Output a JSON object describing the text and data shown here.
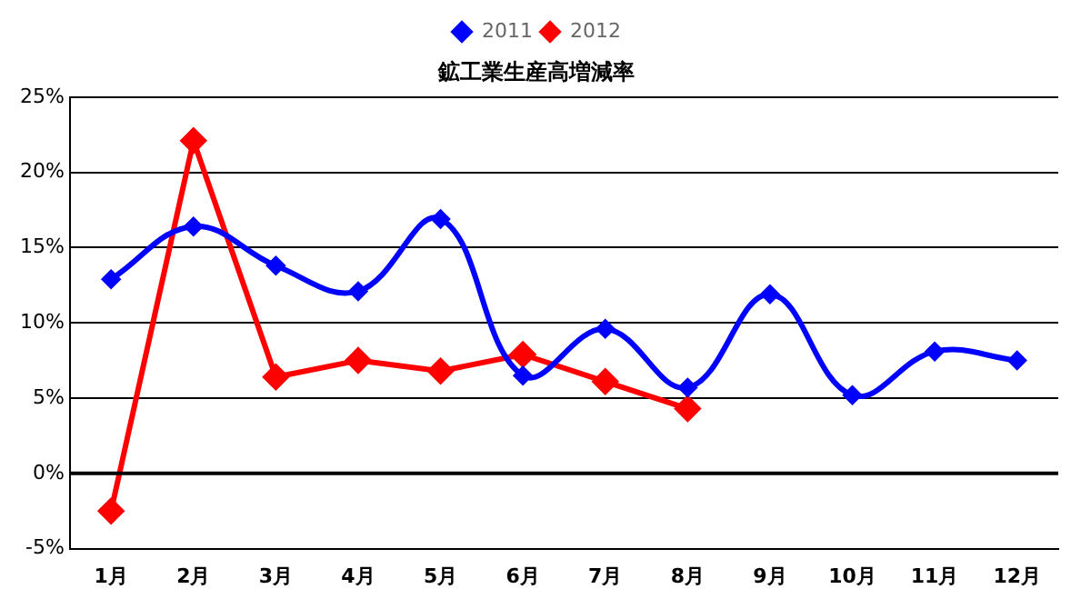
{
  "chart_data": {
    "type": "line",
    "title": "鉱工業生産高増減率",
    "categories": [
      "1月",
      "2月",
      "3月",
      "4月",
      "5月",
      "6月",
      "7月",
      "8月",
      "9月",
      "10月",
      "11月",
      "12月"
    ],
    "series": [
      {
        "name": "2011",
        "color": "#0000ff",
        "values": [
          12.9,
          16.4,
          13.8,
          12.1,
          16.9,
          6.5,
          9.6,
          5.7,
          11.9,
          5.2,
          8.1,
          7.5
        ]
      },
      {
        "name": "2012",
        "color": "#ff0000",
        "values": [
          -2.5,
          22.1,
          6.4,
          7.5,
          6.8,
          7.9,
          6.1,
          4.3,
          null,
          null,
          null,
          null
        ]
      }
    ],
    "ylim": [
      -5,
      25
    ],
    "yticks": [
      {
        "value": -5,
        "label": "-5%"
      },
      {
        "value": 0,
        "label": "0%"
      },
      {
        "value": 5,
        "label": "5%"
      },
      {
        "value": 10,
        "label": "10%"
      },
      {
        "value": 15,
        "label": "15%"
      },
      {
        "value": 20,
        "label": "20%"
      },
      {
        "value": 25,
        "label": "25%"
      }
    ],
    "grid": "y",
    "legend": "top",
    "marker": "diamond",
    "line_style": "solid"
  }
}
